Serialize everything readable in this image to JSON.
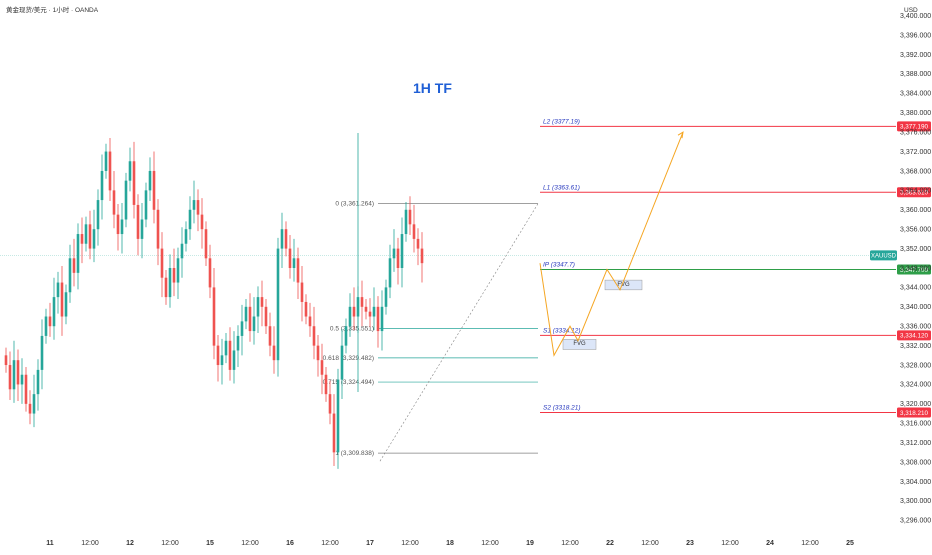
{
  "header": {
    "symbol_line": "黄金现货/美元 · 1小时 · OANDA",
    "price_currency": "USD"
  },
  "annotation_title": "1H TF",
  "colors": {
    "bull": "#26a69a",
    "bear": "#ef5350",
    "level": "#f23645",
    "ip_line": "#2e9e48",
    "projection": "#f5a623",
    "fib_guide": "#26a69a",
    "title": "#1f5fd6",
    "level_text": "#2a3bbf",
    "fvg_box": "#dce6f8",
    "current_price_line": "#8fd3c9"
  },
  "chart_data": {
    "type": "candlestick",
    "instrument": "XAUUSD",
    "timeframe": "1H",
    "yaxis": {
      "range": [
        3294,
        3402
      ],
      "ticks": [
        3296,
        3300,
        3304,
        3308,
        3312,
        3316,
        3320,
        3324,
        3328,
        3332,
        3336,
        3340,
        3344,
        3348,
        3352,
        3356,
        3360,
        3364,
        3368,
        3372,
        3376,
        3380,
        3384,
        3388,
        3392,
        3396,
        3400
      ],
      "tick_labels": [
        "3,296.000",
        "3,300.000",
        "3,304.000",
        "3,308.000",
        "3,312.000",
        "3,316.000",
        "3,320.000",
        "3,324.000",
        "3,328.000",
        "3,332.000",
        "3,336.000",
        "3,340.000",
        "3,344.000",
        "3,348.000",
        "3,352.000",
        "3,356.000",
        "3,360.000",
        "3,364.000",
        "3,368.000",
        "3,372.000",
        "3,376.000",
        "3,380.000",
        "3,384.000",
        "3,388.000",
        "3,392.000",
        "3,396.000",
        "3,400.000"
      ]
    },
    "xaxis": {
      "ticks": [
        {
          "label": "11",
          "bold": true,
          "bar": 4
        },
        {
          "label": "12:00",
          "bold": false,
          "bar": 14
        },
        {
          "label": "12",
          "bold": true,
          "bar": 24
        },
        {
          "label": "12:00",
          "bold": false,
          "bar": 34
        },
        {
          "label": "15",
          "bold": true,
          "bar": 44
        },
        {
          "label": "12:00",
          "bold": false,
          "bar": 54
        },
        {
          "label": "16",
          "bold": true,
          "bar": 64
        },
        {
          "label": "12:00",
          "bold": false,
          "bar": 74
        },
        {
          "label": "17",
          "bold": true,
          "bar": 84
        },
        {
          "label": "12:00",
          "bold": false,
          "bar": 94
        },
        {
          "label": "18",
          "bold": true,
          "bar": 104
        },
        {
          "label": "12:00",
          "bold": false,
          "bar": 114
        },
        {
          "label": "19",
          "bold": true,
          "bar": 124
        },
        {
          "label": "12:00",
          "bold": false,
          "bar": 134
        },
        {
          "label": "22",
          "bold": true,
          "bar": 144
        },
        {
          "label": "12:00",
          "bold": false,
          "bar": 154
        },
        {
          "label": "23",
          "bold": true,
          "bar": 164
        },
        {
          "label": "12:00",
          "bold": false,
          "bar": 174
        },
        {
          "label": "12:00",
          "bold": false,
          "bar": 194
        },
        {
          "label": "24",
          "bold": true,
          "bar": 184
        },
        {
          "label": "25",
          "bold": true,
          "bar": 204
        }
      ]
    },
    "closes": [
      3328,
      3323,
      3329,
      3324,
      3326,
      3320,
      3318,
      3322,
      3327,
      3334,
      3338,
      3336,
      3342,
      3345,
      3338,
      3343,
      3350,
      3347,
      3355,
      3353,
      3357,
      3352,
      3356,
      3362,
      3368,
      3372,
      3364,
      3359,
      3355,
      3358,
      3366,
      3370,
      3361,
      3354,
      3358,
      3364,
      3368,
      3360,
      3352,
      3346,
      3342,
      3348,
      3345,
      3350,
      3353,
      3356,
      3360,
      3362,
      3359,
      3356,
      3350,
      3344,
      3332,
      3328,
      3330,
      3333,
      3327,
      3331,
      3334,
      3337,
      3340,
      3335,
      3338,
      3342,
      3340,
      3336,
      3332,
      3329,
      3352,
      3356,
      3352,
      3348,
      3350,
      3345,
      3341,
      3338,
      3336,
      3332,
      3329,
      3326,
      3322,
      3318,
      3310,
      3325,
      3332,
      3336,
      3340,
      3338,
      3342,
      3340,
      3339,
      3338,
      3340,
      3335,
      3340,
      3344,
      3350,
      3352,
      3348,
      3355,
      3360,
      3357,
      3354,
      3352,
      3349
    ],
    "candle_spacing": 4.0,
    "levels": [
      {
        "name": "L2",
        "label": "L2  (3377.19)",
        "price": 3377.19,
        "tag": "3,377.190"
      },
      {
        "name": "L1",
        "label": "L1  (3363.61)",
        "price": 3363.61,
        "tag": "3,363.610"
      },
      {
        "name": "IP",
        "label": "IP  (3347.7)",
        "price": 3347.7,
        "tag": "3,347.700"
      },
      {
        "name": "S1",
        "label": "S1  (3334.12)",
        "price": 3334.12,
        "tag": "3,334.120"
      },
      {
        "name": "S2",
        "label": "S2  (3318.21)",
        "price": 3318.21,
        "tag": "3,318.210"
      }
    ],
    "current_price": {
      "symbol": "XAUUSD",
      "price": 3350.6
    },
    "fibonacci": {
      "levels": [
        {
          "ratio_label": "0",
          "price": 3361.264,
          "text": "0 (3,361.264)"
        },
        {
          "ratio_label": "0.5",
          "price": 3335.551,
          "text": "0.5 (3,335.551)"
        },
        {
          "ratio_label": "0.618",
          "price": 3329.482,
          "text": "0.618 (3,329.482)"
        },
        {
          "ratio_label": "0.715",
          "price": 3324.494,
          "text": "0.715 (3,324.494)"
        },
        {
          "ratio_label": "1",
          "price": 3309.838,
          "text": "1 (3,309.838)"
        }
      ]
    },
    "fvg_boxes": [
      {
        "label": "FVG",
        "price_top": 3333.3,
        "price_bottom": 3331.2
      },
      {
        "label": "FVG",
        "price_top": 3345.5,
        "price_bottom": 3343.5
      }
    ],
    "projection_path": [
      [
        3349.0,
        0
      ],
      [
        3330.0,
        1
      ],
      [
        3336.0,
        2
      ],
      [
        3333.0,
        3
      ],
      [
        3347.7,
        4
      ],
      [
        3343.5,
        5
      ],
      [
        3376.0,
        6
      ]
    ]
  }
}
